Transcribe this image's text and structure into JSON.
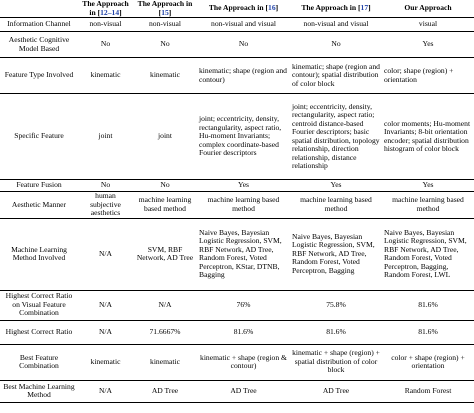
{
  "header": {
    "col0": "",
    "col1": {
      "prefix": "The Approach in [",
      "ref": "12–14",
      "suffix": "]"
    },
    "col2": {
      "prefix": "The Approach in [",
      "ref": "15",
      "suffix": "]"
    },
    "col3": {
      "prefix": "The Approach in [",
      "ref": "16",
      "suffix": "]"
    },
    "col4": {
      "prefix": "The Approach in [",
      "ref": "17",
      "suffix": "]"
    },
    "col5": "Our Approach"
  },
  "rows": [
    {
      "label": "Information Channel",
      "c1": "non-visual",
      "c2": "non-visual",
      "c3": "non-visual and visual",
      "c4": "non-visual and visual",
      "c5": "visual"
    },
    {
      "label": "Aesthetic Cognitive Model Based",
      "c1": "No",
      "c2": "No",
      "c3": "No",
      "c4": "No",
      "c5": "Yes"
    },
    {
      "label": "Feature Type Involved",
      "c1": "kinematic",
      "c2": "kinematic",
      "c3": "kinematic; shape (region and contour)",
      "c4": "kinematic; shape (region and contour); spatial distribution of color block",
      "c5": "color; shape (region) + orientation"
    },
    {
      "label": "Specific Feature",
      "c1": "joint",
      "c2": "joint",
      "c3": "joint; eccentricity, density, rectangularity, aspect ratio, Hu-moment Invariants; complex coordinate-based Fourier descriptors",
      "c4": "joint; eccentricity, density, rectangularity, aspect ratio; centroid distance-based Fourier descriptors; basic spatial distribution, topology relationship, direction relationship, distance relationship",
      "c5": "color moments; Hu-moment Invariants; 8-bit orientation encoder; spatial distribution histogram of color block"
    },
    {
      "label": "Feature Fusion",
      "c1": "No",
      "c2": "No",
      "c3": "Yes",
      "c4": "Yes",
      "c5": "Yes"
    },
    {
      "label": "Aesthetic Manner",
      "c1": "human subjective aesthetics",
      "c2": "machine learning based method",
      "c3": "machine learning based method",
      "c4": "machine learning based method",
      "c5": "machine learning based method"
    },
    {
      "label": "Machine Learning Method Involved",
      "c1": "N/A",
      "c2": "SVM, RBF Network, AD Tree",
      "c3": "Naive Bayes, Bayesian Logistic Regression, SVM, RBF Network, AD Tree, Random Forest, Voted Perceptron, KStar, DTNB, Bagging",
      "c4": "Naive Bayes, Bayesian Logistic Regression, SVM, RBF Network, AD Tree, Random Forest, Voted Perceptron, Bagging",
      "c5": "Naive Bayes, Bayesian Logistic Regression, SVM, RBF Network, AD Tree, Random Forest, Voted Perceptron, Bagging, Random Forest, LWL"
    },
    {
      "label": "Highest Correct Ratio on Visual Feature Combination",
      "c1": "N/A",
      "c2": "N/A",
      "c3": "76%",
      "c4": "75.8%",
      "c5": "81.6%"
    },
    {
      "label": "Highest Correct Ratio",
      "c1": "N/A",
      "c2": "71.6667%",
      "c3": "81.6%",
      "c4": "81.6%",
      "c5": "81.6%"
    },
    {
      "label": "Best Feature Combination",
      "c1": "kinematic",
      "c2": "kinematic",
      "c3": "kinematic + shape (region & contour)",
      "c4": "kinematic + shape (region) + spatial distribution of color block",
      "c5": "color + shape (region) + orientation"
    },
    {
      "label": "Best Machine Learning Method",
      "c1": "N/A",
      "c2": "AD Tree",
      "c3": "AD Tree",
      "c4": "AD Tree",
      "c5": "Random Forest"
    }
  ]
}
